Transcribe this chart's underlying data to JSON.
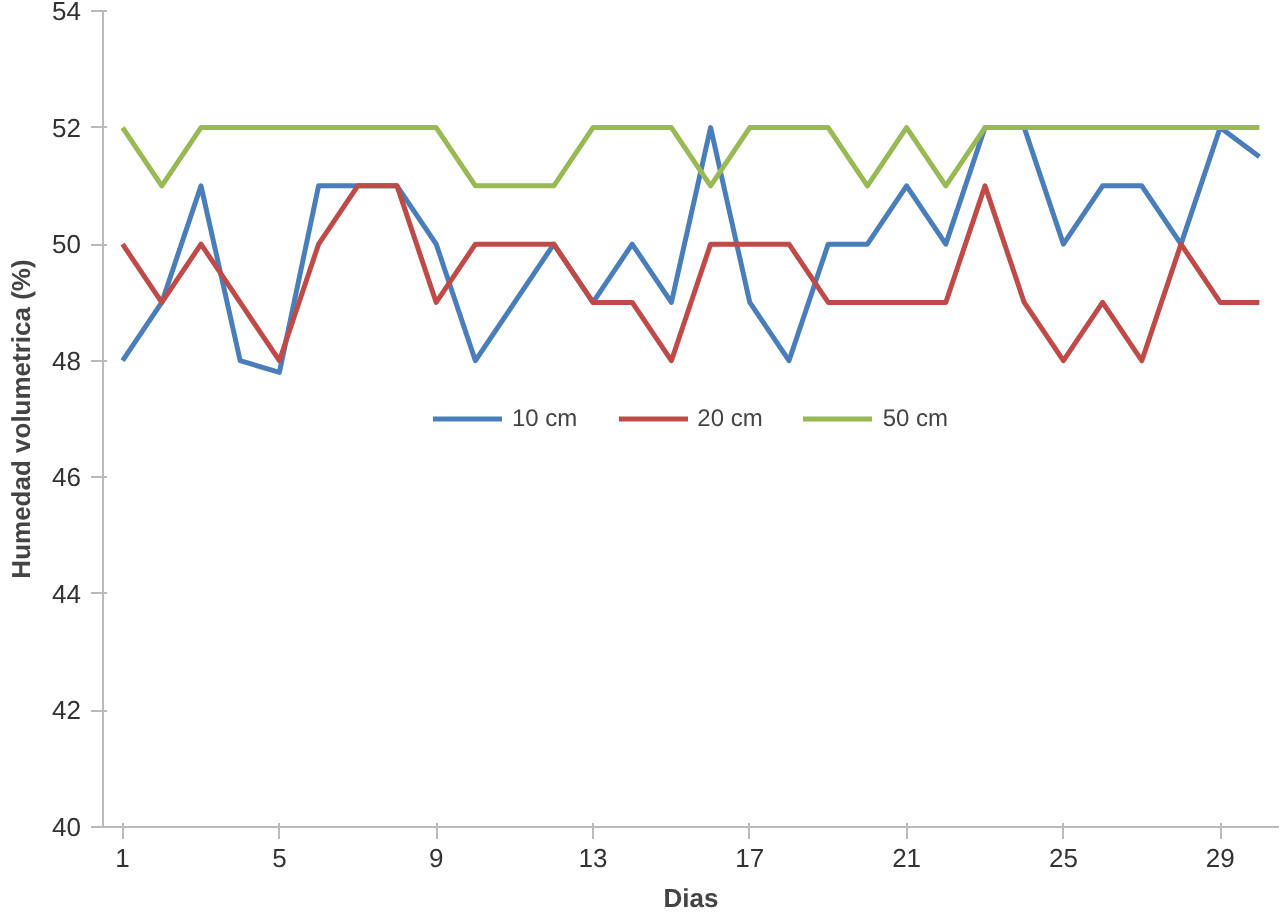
{
  "chart_data": {
    "type": "line",
    "xlabel": "Dias",
    "ylabel": "Humedad volumetrica (%)",
    "x": [
      1,
      2,
      3,
      4,
      5,
      6,
      7,
      8,
      9,
      10,
      11,
      12,
      13,
      14,
      15,
      16,
      17,
      18,
      19,
      20,
      21,
      22,
      23,
      24,
      25,
      26,
      27,
      28,
      29,
      30
    ],
    "series": [
      {
        "name": "10 cm",
        "color": "#4a7ebb",
        "values": [
          48,
          49,
          51,
          48,
          47.8,
          51,
          51,
          51,
          50,
          48,
          49,
          50,
          49,
          50,
          49,
          52,
          49,
          48,
          50,
          50,
          51,
          50,
          52,
          52,
          50,
          51,
          51,
          50,
          52,
          51.5
        ]
      },
      {
        "name": "20 cm",
        "color": "#be4b48",
        "values": [
          50,
          49,
          50,
          49,
          48,
          50,
          51,
          51,
          49,
          50,
          50,
          50,
          49,
          49,
          48,
          50,
          50,
          50,
          49,
          49,
          49,
          49,
          51,
          49,
          48,
          49,
          48,
          50,
          49,
          49
        ]
      },
      {
        "name": "50 cm",
        "color": "#98b954",
        "values": [
          52,
          51,
          52,
          52,
          52,
          52,
          52,
          52,
          52,
          51,
          51,
          51,
          52,
          52,
          52,
          51,
          52,
          52,
          52,
          51,
          52,
          51,
          52,
          52,
          52,
          52,
          52,
          52,
          52,
          52
        ]
      }
    ],
    "xlim": [
      0.5,
      30.5
    ],
    "xticks": [
      1,
      5,
      9,
      13,
      17,
      21,
      25,
      29
    ],
    "ylim": [
      40,
      54
    ],
    "yticks": [
      40,
      42,
      44,
      46,
      48,
      50,
      52,
      54
    ],
    "grid": false,
    "legend": "center",
    "marker": "none",
    "line_style": "solid"
  }
}
